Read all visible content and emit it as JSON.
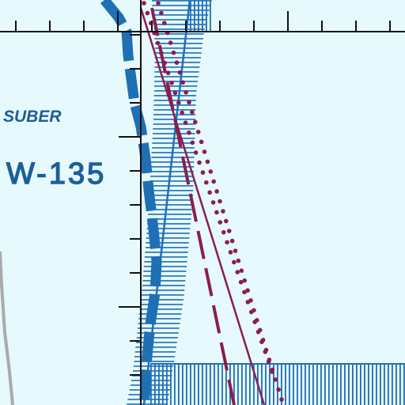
{
  "map": {
    "labels": {
      "suber": "SUBER",
      "airspace": "W-135"
    },
    "colors": {
      "background": "#e6f9fc",
      "airspace_blue": "#1f6fb5",
      "label_blue": "#1d5e99",
      "route_magenta": "#8b1d4e",
      "grid_black": "#111111",
      "road_gray": "#aaaaaa"
    }
  }
}
